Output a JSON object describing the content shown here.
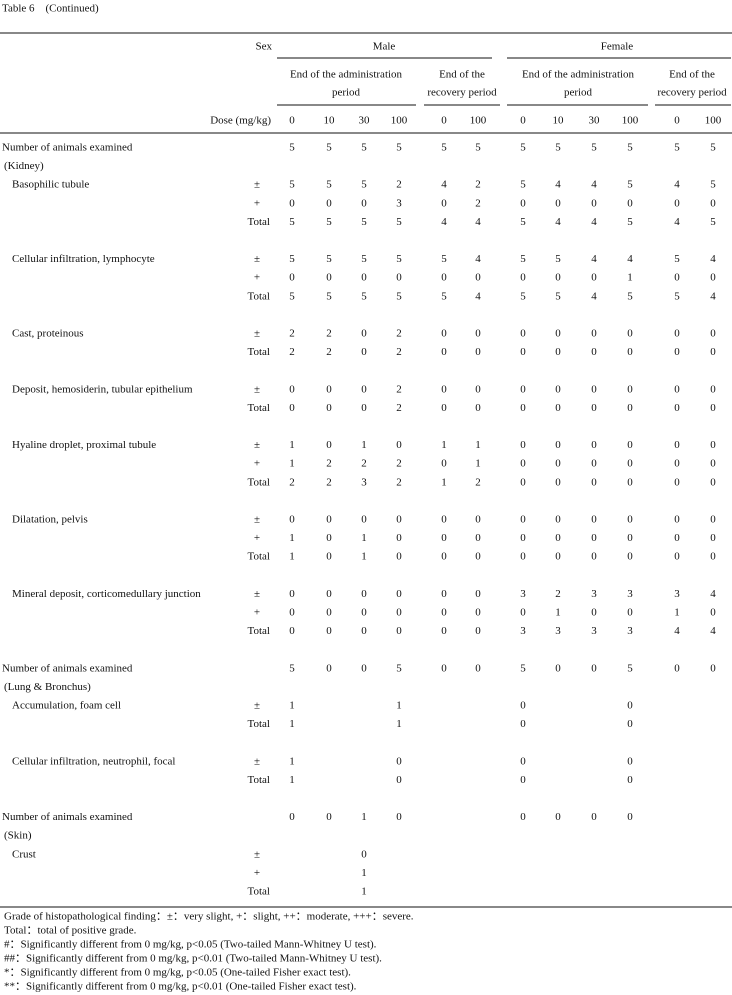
{
  "title": "Table 6　(Continued)",
  "header": {
    "sex": "Sex",
    "dose": "Dose (mg/kg)",
    "groups": [
      {
        "name": "Male",
        "periods": [
          {
            "lines": [
              "End of the administration",
              "period"
            ],
            "doses": [
              "0",
              "10",
              "30",
              "100"
            ]
          },
          {
            "lines": [
              "End of the",
              "recovery period"
            ],
            "doses": [
              "0",
              "100"
            ]
          }
        ]
      },
      {
        "name": "Female",
        "periods": [
          {
            "lines": [
              "End of the administration",
              "period"
            ],
            "doses": [
              "0",
              "10",
              "30",
              "100"
            ]
          },
          {
            "lines": [
              "End of the",
              "recovery period"
            ],
            "doses": [
              "0",
              "100"
            ]
          }
        ]
      }
    ]
  },
  "sections": [
    {
      "header": "Number of animals examined",
      "counts": [
        "5",
        "5",
        "5",
        "5",
        "5",
        "5",
        "5",
        "5",
        "5",
        "5",
        "5",
        "5"
      ],
      "organ": "(Kidney)",
      "findings": [
        {
          "name": "Basophilic tubule",
          "rows": [
            {
              "grade": "±",
              "values": [
                "5",
                "5",
                "5",
                "2",
                "4",
                "2",
                "5",
                "4",
                "4",
                "5",
                "4",
                "5"
              ]
            },
            {
              "grade": "+",
              "values": [
                "0",
                "0",
                "0",
                "3",
                "0",
                "2",
                "0",
                "0",
                "0",
                "0",
                "0",
                "0"
              ]
            },
            {
              "grade": "Total",
              "values": [
                "5",
                "5",
                "5",
                "5",
                "4",
                "4",
                "5",
                "4",
                "4",
                "5",
                "4",
                "5"
              ]
            }
          ]
        },
        {
          "name": "Cellular infiltration, lymphocyte",
          "rows": [
            {
              "grade": "±",
              "values": [
                "5",
                "5",
                "5",
                "5",
                "5",
                "4",
                "5",
                "5",
                "4",
                "4",
                "5",
                "4"
              ]
            },
            {
              "grade": "+",
              "values": [
                "0",
                "0",
                "0",
                "0",
                "0",
                "0",
                "0",
                "0",
                "0",
                "1",
                "0",
                "0"
              ]
            },
            {
              "grade": "Total",
              "values": [
                "5",
                "5",
                "5",
                "5",
                "5",
                "4",
                "5",
                "5",
                "4",
                "5",
                "5",
                "4"
              ]
            }
          ]
        },
        {
          "name": "Cast, proteinous",
          "rows": [
            {
              "grade": "±",
              "values": [
                "2",
                "2",
                "0",
                "2",
                "0",
                "0",
                "0",
                "0",
                "0",
                "0",
                "0",
                "0"
              ]
            },
            {
              "grade": "Total",
              "values": [
                "2",
                "2",
                "0",
                "2",
                "0",
                "0",
                "0",
                "0",
                "0",
                "0",
                "0",
                "0"
              ]
            }
          ]
        },
        {
          "name": "Deposit, hemosiderin, tubular epithelium",
          "rows": [
            {
              "grade": "±",
              "values": [
                "0",
                "0",
                "0",
                "2",
                "0",
                "0",
                "0",
                "0",
                "0",
                "0",
                "0",
                "0"
              ]
            },
            {
              "grade": "Total",
              "values": [
                "0",
                "0",
                "0",
                "2",
                "0",
                "0",
                "0",
                "0",
                "0",
                "0",
                "0",
                "0"
              ]
            }
          ]
        },
        {
          "name": "Hyaline droplet, proximal tubule",
          "rows": [
            {
              "grade": "±",
              "values": [
                "1",
                "0",
                "1",
                "0",
                "1",
                "1",
                "0",
                "0",
                "0",
                "0",
                "0",
                "0"
              ]
            },
            {
              "grade": "+",
              "values": [
                "1",
                "2",
                "2",
                "2",
                "0",
                "1",
                "0",
                "0",
                "0",
                "0",
                "0",
                "0"
              ]
            },
            {
              "grade": "Total",
              "values": [
                "2",
                "2",
                "3",
                "2",
                "1",
                "2",
                "0",
                "0",
                "0",
                "0",
                "0",
                "0"
              ]
            }
          ]
        },
        {
          "name": "Dilatation, pelvis",
          "rows": [
            {
              "grade": "±",
              "values": [
                "0",
                "0",
                "0",
                "0",
                "0",
                "0",
                "0",
                "0",
                "0",
                "0",
                "0",
                "0"
              ]
            },
            {
              "grade": "+",
              "values": [
                "1",
                "0",
                "1",
                "0",
                "0",
                "0",
                "0",
                "0",
                "0",
                "0",
                "0",
                "0"
              ]
            },
            {
              "grade": "Total",
              "values": [
                "1",
                "0",
                "1",
                "0",
                "0",
                "0",
                "0",
                "0",
                "0",
                "0",
                "0",
                "0"
              ]
            }
          ]
        },
        {
          "name": "Mineral deposit, corticomedullary junction",
          "rows": [
            {
              "grade": "±",
              "values": [
                "0",
                "0",
                "0",
                "0",
                "0",
                "0",
                "3",
                "2",
                "3",
                "3",
                "3",
                "4"
              ]
            },
            {
              "grade": "+",
              "values": [
                "0",
                "0",
                "0",
                "0",
                "0",
                "0",
                "0",
                "1",
                "0",
                "0",
                "1",
                "0"
              ]
            },
            {
              "grade": "Total",
              "values": [
                "0",
                "0",
                "0",
                "0",
                "0",
                "0",
                "3",
                "3",
                "3",
                "3",
                "4",
                "4"
              ]
            }
          ]
        }
      ]
    },
    {
      "header": "Number of animals examined",
      "counts": [
        "5",
        "0",
        "0",
        "5",
        "0",
        "0",
        "5",
        "0",
        "0",
        "5",
        "0",
        "0"
      ],
      "organ": "(Lung & Bronchus)",
      "findings": [
        {
          "name": "Accumulation, foam cell",
          "rows": [
            {
              "grade": "±",
              "values": [
                "1",
                null,
                null,
                "1",
                null,
                null,
                "0",
                null,
                null,
                "0",
                null,
                null
              ]
            },
            {
              "grade": "Total",
              "values": [
                "1",
                null,
                null,
                "1",
                null,
                null,
                "0",
                null,
                null,
                "0",
                null,
                null
              ]
            }
          ]
        },
        {
          "name": "Cellular infiltration, neutrophil, focal",
          "rows": [
            {
              "grade": "±",
              "values": [
                "1",
                null,
                null,
                "0",
                null,
                null,
                "0",
                null,
                null,
                "0",
                null,
                null
              ]
            },
            {
              "grade": "Total",
              "values": [
                "1",
                null,
                null,
                "0",
                null,
                null,
                "0",
                null,
                null,
                "0",
                null,
                null
              ]
            }
          ]
        }
      ]
    },
    {
      "header": "Number of animals examined",
      "counts": [
        "0",
        "0",
        "1",
        "0",
        null,
        null,
        "0",
        "0",
        "0",
        "0",
        null,
        null
      ],
      "organ": "(Skin)",
      "findings": [
        {
          "name": "Crust",
          "rows": [
            {
              "grade": "±",
              "values": [
                null,
                null,
                "0",
                null,
                null,
                null,
                null,
                null,
                null,
                null,
                null,
                null
              ]
            },
            {
              "grade": "+",
              "values": [
                null,
                null,
                "1",
                null,
                null,
                null,
                null,
                null,
                null,
                null,
                null,
                null
              ]
            },
            {
              "grade": "Total",
              "values": [
                null,
                null,
                "1",
                null,
                null,
                null,
                null,
                null,
                null,
                null,
                null,
                null
              ]
            }
          ]
        }
      ]
    }
  ],
  "footnotes": [
    "Grade of histopathological finding：±：very slight, +：slight, ++：moderate, +++：severe.",
    "Total：total of positive grade.",
    "#：Significantly different from 0 mg/kg, p<0.05 (Two-tailed Mann-Whitney U test).",
    "##：Significantly different from 0 mg/kg, p<0.01 (Two-tailed Mann-Whitney U test).",
    "*：Significantly different from 0 mg/kg, p<0.05 (One-tailed Fisher exact test).",
    "**：Significantly different from 0 mg/kg, p<0.01 (One-tailed Fisher exact test)."
  ]
}
